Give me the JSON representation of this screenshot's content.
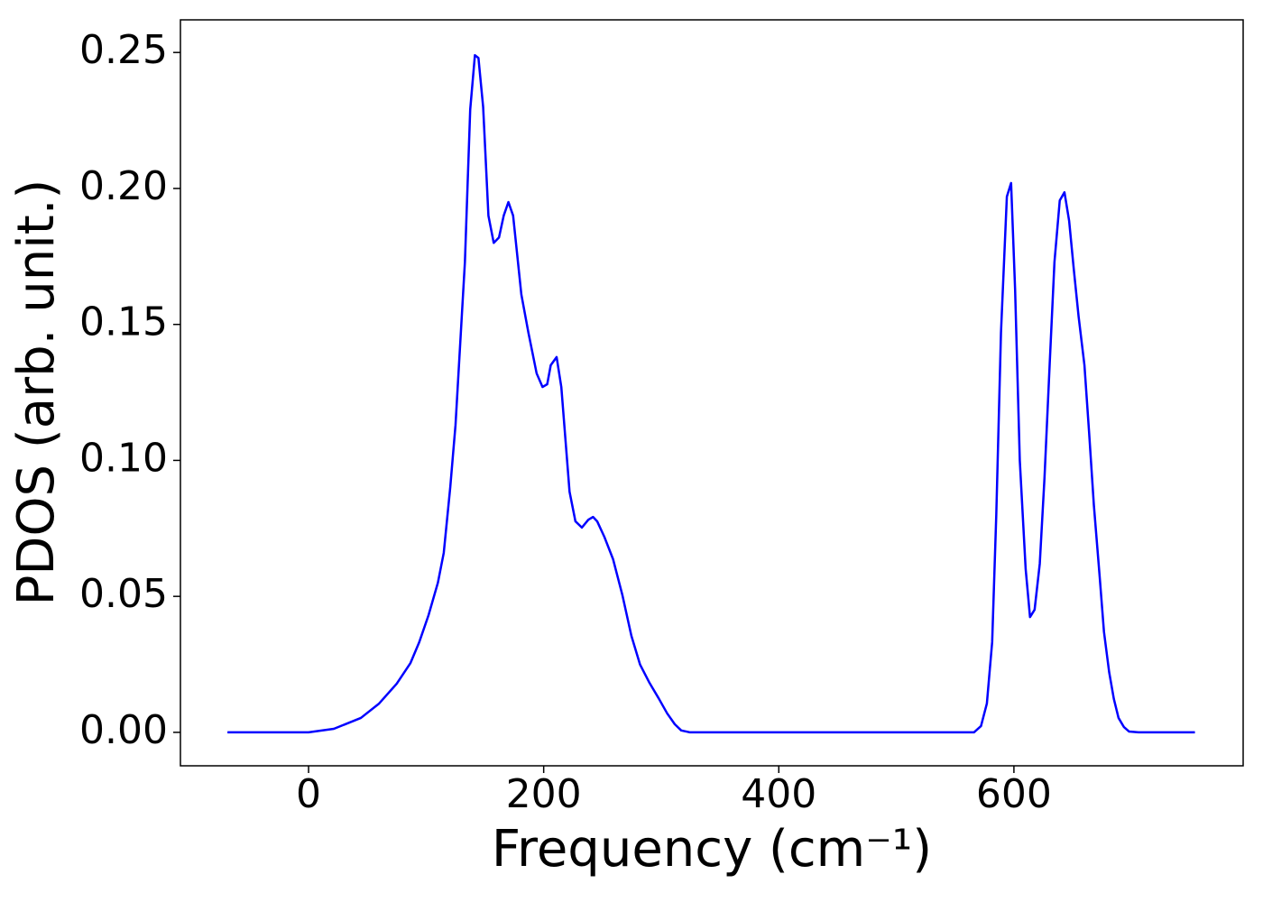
{
  "chart_data": {
    "type": "line",
    "xlabel": "Frequency (cm⁻¹)",
    "ylabel": "PDOS (arb. unit.)",
    "x": [
      -69,
      0,
      21.5,
      44.5,
      60,
      75,
      86.7,
      94,
      102,
      110,
      115,
      120.5,
      125,
      129,
      133,
      135,
      137.5,
      141.5,
      144.5,
      148.5,
      153,
      157.5,
      162,
      166,
      170,
      174,
      181,
      187,
      194,
      199,
      203,
      206,
      211,
      215,
      222,
      227,
      232.5,
      238,
      242,
      245.5,
      251.5,
      259,
      267,
      274.6,
      282,
      290,
      297.7,
      305,
      311.5,
      317,
      324.5,
      566,
      572,
      577,
      581.5,
      585,
      589,
      594,
      597.6,
      601,
      605,
      610,
      613.7,
      617.6,
      622,
      626,
      630.6,
      634.5,
      639,
      643,
      647,
      651,
      655,
      660,
      664,
      668,
      673,
      676.6,
      681,
      685,
      689,
      693.5,
      698,
      706,
      754
    ],
    "series": [
      {
        "color": "#0000ff",
        "values": [
          0,
          0,
          0.0013,
          0.0053,
          0.0106,
          0.0179,
          0.0255,
          0.033,
          0.043,
          0.055,
          0.066,
          0.09,
          0.113,
          0.143,
          0.173,
          0.198,
          0.229,
          0.249,
          0.248,
          0.23,
          0.19,
          0.18,
          0.182,
          0.19,
          0.195,
          0.19,
          0.161,
          0.147,
          0.132,
          0.127,
          0.128,
          0.135,
          0.138,
          0.127,
          0.0885,
          0.0776,
          0.0753,
          0.0782,
          0.0792,
          0.0776,
          0.072,
          0.0637,
          0.0504,
          0.0355,
          0.0249,
          0.0182,
          0.0126,
          0.007,
          0.003,
          0.0007,
          0,
          0,
          0.0023,
          0.0106,
          0.0332,
          0.08,
          0.147,
          0.197,
          0.202,
          0.163,
          0.1,
          0.06,
          0.0424,
          0.0451,
          0.062,
          0.0935,
          0.137,
          0.173,
          0.1956,
          0.1986,
          0.188,
          0.17,
          0.153,
          0.135,
          0.11,
          0.0836,
          0.057,
          0.037,
          0.0222,
          0.0123,
          0.0053,
          0.002,
          0.0003,
          0,
          0
        ]
      }
    ],
    "xlim": [
      -109,
      795
    ],
    "ylim": [
      -0.0123,
      0.262
    ],
    "xticks": [
      0,
      200,
      400,
      600
    ],
    "yticks": [
      {
        "value": 0,
        "label": "0.00"
      },
      0.05,
      {
        "value": 0.1,
        "label": "0.10"
      },
      0.15,
      {
        "value": 0.2,
        "label": "0.20"
      },
      0.25
    ]
  }
}
